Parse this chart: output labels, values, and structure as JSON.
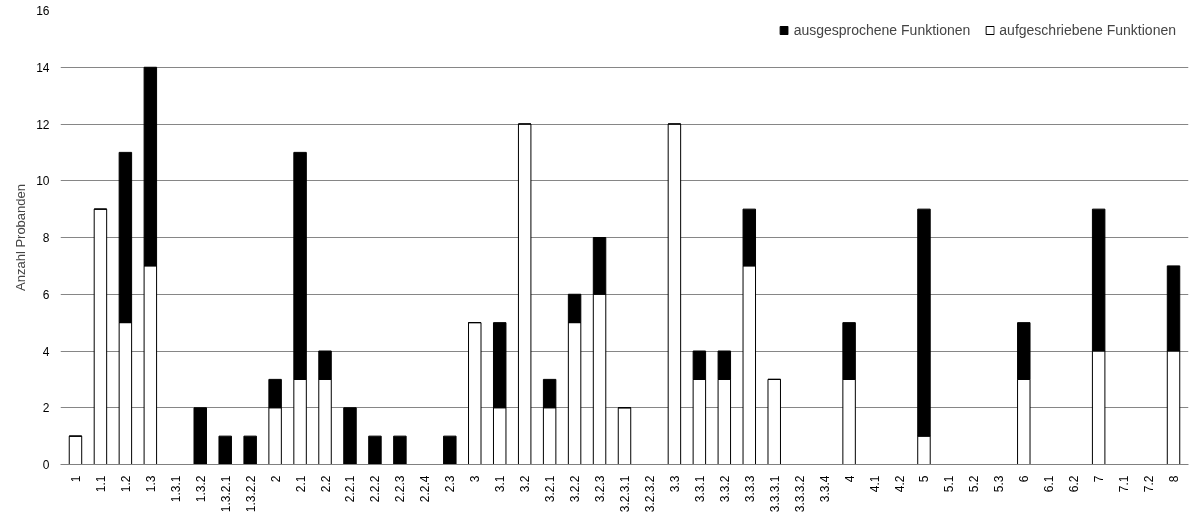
{
  "chart_data": {
    "type": "bar",
    "stacked": true,
    "ylabel": "Anzahl Probanden",
    "categories": [
      "1",
      "1.1",
      "1.2",
      "1.3",
      "1.3.1",
      "1.3.2",
      "1.3.2.1",
      "1.3.2.2",
      "2",
      "2.1",
      "2.2",
      "2.2.1",
      "2.2.2",
      "2.2.3",
      "2.2.4",
      "2.3",
      "3",
      "3.1",
      "3.2",
      "3.2.1",
      "3.2.2",
      "3.2.3",
      "3.2.3.1",
      "3.2.3.2",
      "3.3",
      "3.3.1",
      "3.3.2",
      "3.3.3",
      "3.3.3.1",
      "3.3.3.2",
      "3.3.4",
      "4",
      "4.1",
      "4.2",
      "5",
      "5.1",
      "5.2",
      "5.3",
      "6",
      "6.1",
      "6.2",
      "7",
      "7.1",
      "7.2",
      "8"
    ],
    "series": [
      {
        "name": "aufgeschriebene Funktionen",
        "color": "#ffffff",
        "values": [
          1,
          9,
          5,
          7,
          0,
          0,
          0,
          0,
          2,
          3,
          3,
          0,
          0,
          0,
          0,
          0,
          5,
          2,
          12,
          2,
          5,
          6,
          2,
          0,
          12,
          3,
          3,
          7,
          3,
          0,
          0,
          3,
          0,
          0,
          1,
          0,
          0,
          0,
          3,
          0,
          0,
          4,
          0,
          0,
          4
        ]
      },
      {
        "name": "ausgesprochene Funktionen",
        "color": "#000000",
        "values": [
          0,
          0,
          6,
          7,
          0,
          2,
          1,
          1,
          1,
          8,
          1,
          2,
          1,
          1,
          0,
          1,
          0,
          3,
          0,
          1,
          1,
          2,
          0,
          0,
          0,
          1,
          1,
          2,
          0,
          0,
          0,
          2,
          0,
          0,
          8,
          0,
          0,
          0,
          2,
          0,
          0,
          5,
          0,
          0,
          3
        ]
      }
    ],
    "ylim": [
      0,
      16
    ],
    "yticks": [
      0,
      2,
      4,
      6,
      8,
      10,
      12,
      14,
      16
    ],
    "grid": "y",
    "legend": "top right"
  }
}
